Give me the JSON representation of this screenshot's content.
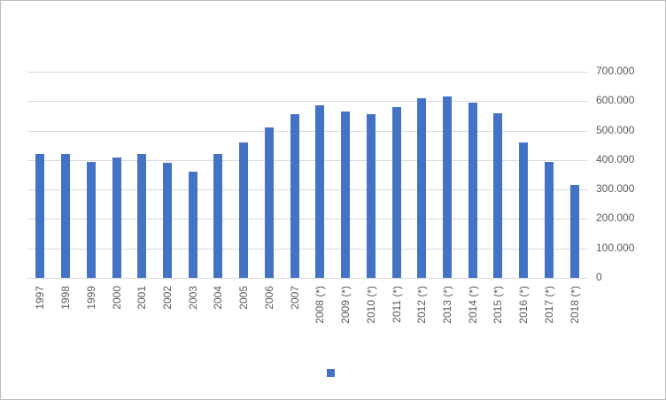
{
  "chart_data": {
    "type": "bar",
    "title": "",
    "xlabel": "",
    "ylabel": "",
    "categories": [
      "1997",
      "1998",
      "1999",
      "2000",
      "2001",
      "2002",
      "2003",
      "2004",
      "2005",
      "2006",
      "2007",
      "2008 (*)",
      "2009 (*)",
      "2010 (*)",
      "2011 (*)",
      "2012 (*)",
      "2013 (*)",
      "2014 (*)",
      "2015 (*)",
      "2016 (*)",
      "2017 (*)",
      "2018 (*)"
    ],
    "values": [
      420000,
      420000,
      395000,
      410000,
      420000,
      390000,
      360000,
      420000,
      460000,
      510000,
      555000,
      585000,
      565000,
      555000,
      580000,
      610000,
      615000,
      595000,
      560000,
      460000,
      395000,
      315000
    ],
    "ylim": [
      0,
      700000
    ],
    "ytick_step": 100000,
    "ytick_labels": [
      "0",
      "100.000",
      "200.000",
      "300.000",
      "400.000",
      "500.000",
      "600.000",
      "700.000"
    ],
    "y_axis_side": "right",
    "grid": true,
    "x_label_rotation_degrees": 90,
    "legend": {
      "position": "bottom",
      "label": ""
    },
    "colors": {
      "bar": "#4472c4",
      "gridline": "#d9d9d9",
      "text": "#595959",
      "frame_border": "#bdbdbd",
      "background": "#ffffff"
    }
  }
}
